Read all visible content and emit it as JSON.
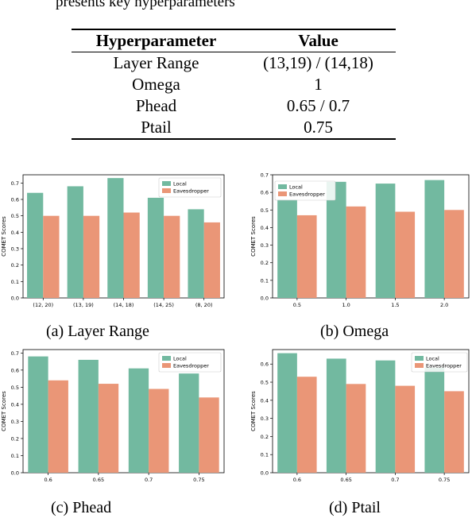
{
  "intro_text": "presents key hyperparameters",
  "table": {
    "headers": [
      "Hyperparameter",
      "Value"
    ],
    "rows": [
      [
        "Layer Range",
        "(13,19) / (14,18)"
      ],
      [
        "Omega",
        "1"
      ],
      [
        "Phead",
        "0.65 / 0.7"
      ],
      [
        "Ptail",
        "0.75"
      ]
    ]
  },
  "colors": {
    "local": "#72b9a0",
    "eavesdropper": "#ea9677"
  },
  "captions": [
    "(a) Layer Range",
    "(b) Omega",
    "(c) Phead",
    "(d) Ptail"
  ],
  "chart_data": [
    {
      "type": "bar",
      "ylabel": "COMET Scores",
      "ylim": [
        0,
        0.75
      ],
      "yticks": [
        "0.0",
        "0.1",
        "0.2",
        "0.3",
        "0.4",
        "0.5",
        "0.6",
        "0.7"
      ],
      "categories": [
        "(12, 20)",
        "(13, 19)",
        "(14, 18)",
        "(14, 25)",
        "(8, 20)"
      ],
      "series": [
        {
          "name": "Local",
          "values": [
            0.64,
            0.68,
            0.73,
            0.61,
            0.54
          ]
        },
        {
          "name": "Eavesdropper",
          "values": [
            0.5,
            0.5,
            0.52,
            0.5,
            0.46
          ]
        }
      ],
      "legend": "top-right"
    },
    {
      "type": "bar",
      "ylabel": "COMET Scores",
      "ylim": [
        0,
        0.7
      ],
      "yticks": [
        "0.0",
        "0.1",
        "0.2",
        "0.3",
        "0.4",
        "0.5",
        "0.6",
        "0.7"
      ],
      "categories": [
        "0.5",
        "1.0",
        "1.5",
        "2.0"
      ],
      "series": [
        {
          "name": "Local",
          "values": [
            0.56,
            0.66,
            0.65,
            0.67
          ]
        },
        {
          "name": "Eavesdropper",
          "values": [
            0.47,
            0.52,
            0.49,
            0.5
          ]
        }
      ],
      "legend": "top-left"
    },
    {
      "type": "bar",
      "ylabel": "COMET Scores",
      "ylim": [
        0,
        0.72
      ],
      "yticks": [
        "0.0",
        "0.1",
        "0.2",
        "0.3",
        "0.4",
        "0.5",
        "0.6",
        "0.7"
      ],
      "categories": [
        "0.6",
        "0.65",
        "0.7",
        "0.75"
      ],
      "series": [
        {
          "name": "Local",
          "values": [
            0.68,
            0.66,
            0.61,
            0.58
          ]
        },
        {
          "name": "Eavesdropper",
          "values": [
            0.54,
            0.52,
            0.49,
            0.44
          ]
        }
      ],
      "legend": "top-right"
    },
    {
      "type": "bar",
      "ylabel": "COMET Scores",
      "ylim": [
        0,
        0.68
      ],
      "yticks": [
        "0.0",
        "0.1",
        "0.2",
        "0.3",
        "0.4",
        "0.5",
        "0.6"
      ],
      "categories": [
        "0.6",
        "0.65",
        "0.7",
        "0.75"
      ],
      "series": [
        {
          "name": "Local",
          "values": [
            0.66,
            0.63,
            0.62,
            0.58
          ]
        },
        {
          "name": "Eavesdropper",
          "values": [
            0.53,
            0.49,
            0.48,
            0.45
          ]
        }
      ],
      "legend": "top-right"
    }
  ]
}
